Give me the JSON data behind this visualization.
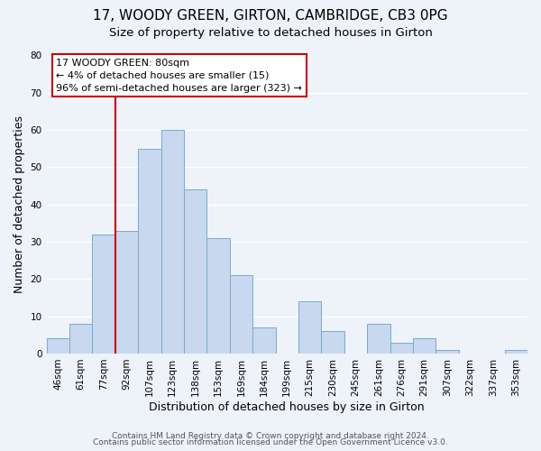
{
  "title": "17, WOODY GREEN, GIRTON, CAMBRIDGE, CB3 0PG",
  "subtitle": "Size of property relative to detached houses in Girton",
  "xlabel": "Distribution of detached houses by size in Girton",
  "ylabel": "Number of detached properties",
  "bar_labels": [
    "46sqm",
    "61sqm",
    "77sqm",
    "92sqm",
    "107sqm",
    "123sqm",
    "138sqm",
    "153sqm",
    "169sqm",
    "184sqm",
    "199sqm",
    "215sqm",
    "230sqm",
    "245sqm",
    "261sqm",
    "276sqm",
    "291sqm",
    "307sqm",
    "322sqm",
    "337sqm",
    "353sqm"
  ],
  "bar_heights": [
    4,
    8,
    32,
    33,
    55,
    60,
    44,
    31,
    21,
    7,
    0,
    14,
    6,
    0,
    8,
    3,
    4,
    1,
    0,
    0,
    1
  ],
  "bar_color": "#c8d8ee",
  "bar_edge_color": "#7aaad0",
  "vline_color": "#cc0000",
  "annotation_title": "17 WOODY GREEN: 80sqm",
  "annotation_line1": "← 4% of detached houses are smaller (15)",
  "annotation_line2": "96% of semi-detached houses are larger (323) →",
  "annotation_box_color": "#ffffff",
  "annotation_box_edge": "#cc0000",
  "ylim": [
    0,
    80
  ],
  "yticks": [
    0,
    10,
    20,
    30,
    40,
    50,
    60,
    70,
    80
  ],
  "footer1": "Contains HM Land Registry data © Crown copyright and database right 2024.",
  "footer2": "Contains public sector information licensed under the Open Government Licence v3.0.",
  "background_color": "#eef2f9",
  "grid_color": "#ffffff",
  "title_fontsize": 11,
  "subtitle_fontsize": 9.5,
  "axis_label_fontsize": 9,
  "tick_fontsize": 7.5,
  "footer_fontsize": 6.5,
  "annotation_fontsize": 8
}
